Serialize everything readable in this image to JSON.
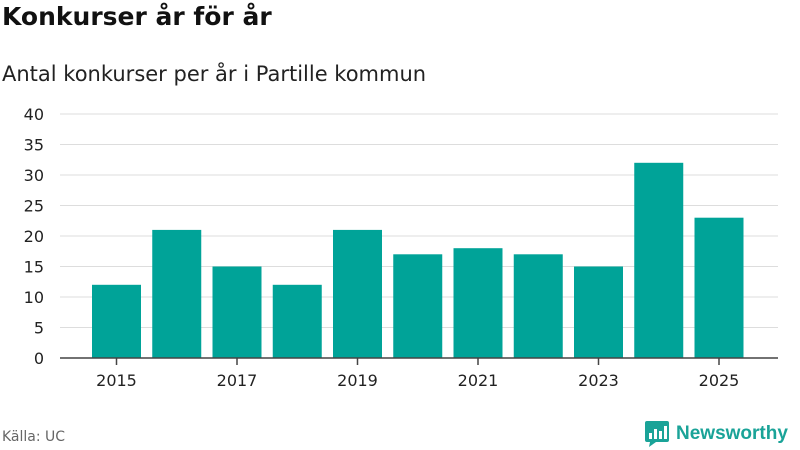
{
  "header": {
    "title": "Konkurser år för år",
    "subtitle": "Antal konkurser per år i Partille kommun"
  },
  "footer": {
    "source": "Källa: UC",
    "brand": "Newsworthy"
  },
  "colors": {
    "bar": "#00a398",
    "grid": "#dddddd",
    "axis": "#444444",
    "brand": "#1aa398"
  },
  "chart_data": {
    "type": "bar",
    "title": "Konkurser år för år",
    "subtitle": "Antal konkurser per år i Partille kommun",
    "xlabel": "",
    "ylabel": "",
    "categories": [
      "2015",
      "2016",
      "2017",
      "2018",
      "2019",
      "2020",
      "2021",
      "2022",
      "2023",
      "2024",
      "2025"
    ],
    "values": [
      12,
      21,
      15,
      12,
      21,
      17,
      18,
      17,
      15,
      32,
      23
    ],
    "xticks": [
      "2015",
      "2017",
      "2019",
      "2021",
      "2023",
      "2025"
    ],
    "yticks": [
      0,
      5,
      10,
      15,
      20,
      25,
      30,
      35,
      40
    ],
    "ylim": [
      0,
      40
    ],
    "grid": true
  }
}
